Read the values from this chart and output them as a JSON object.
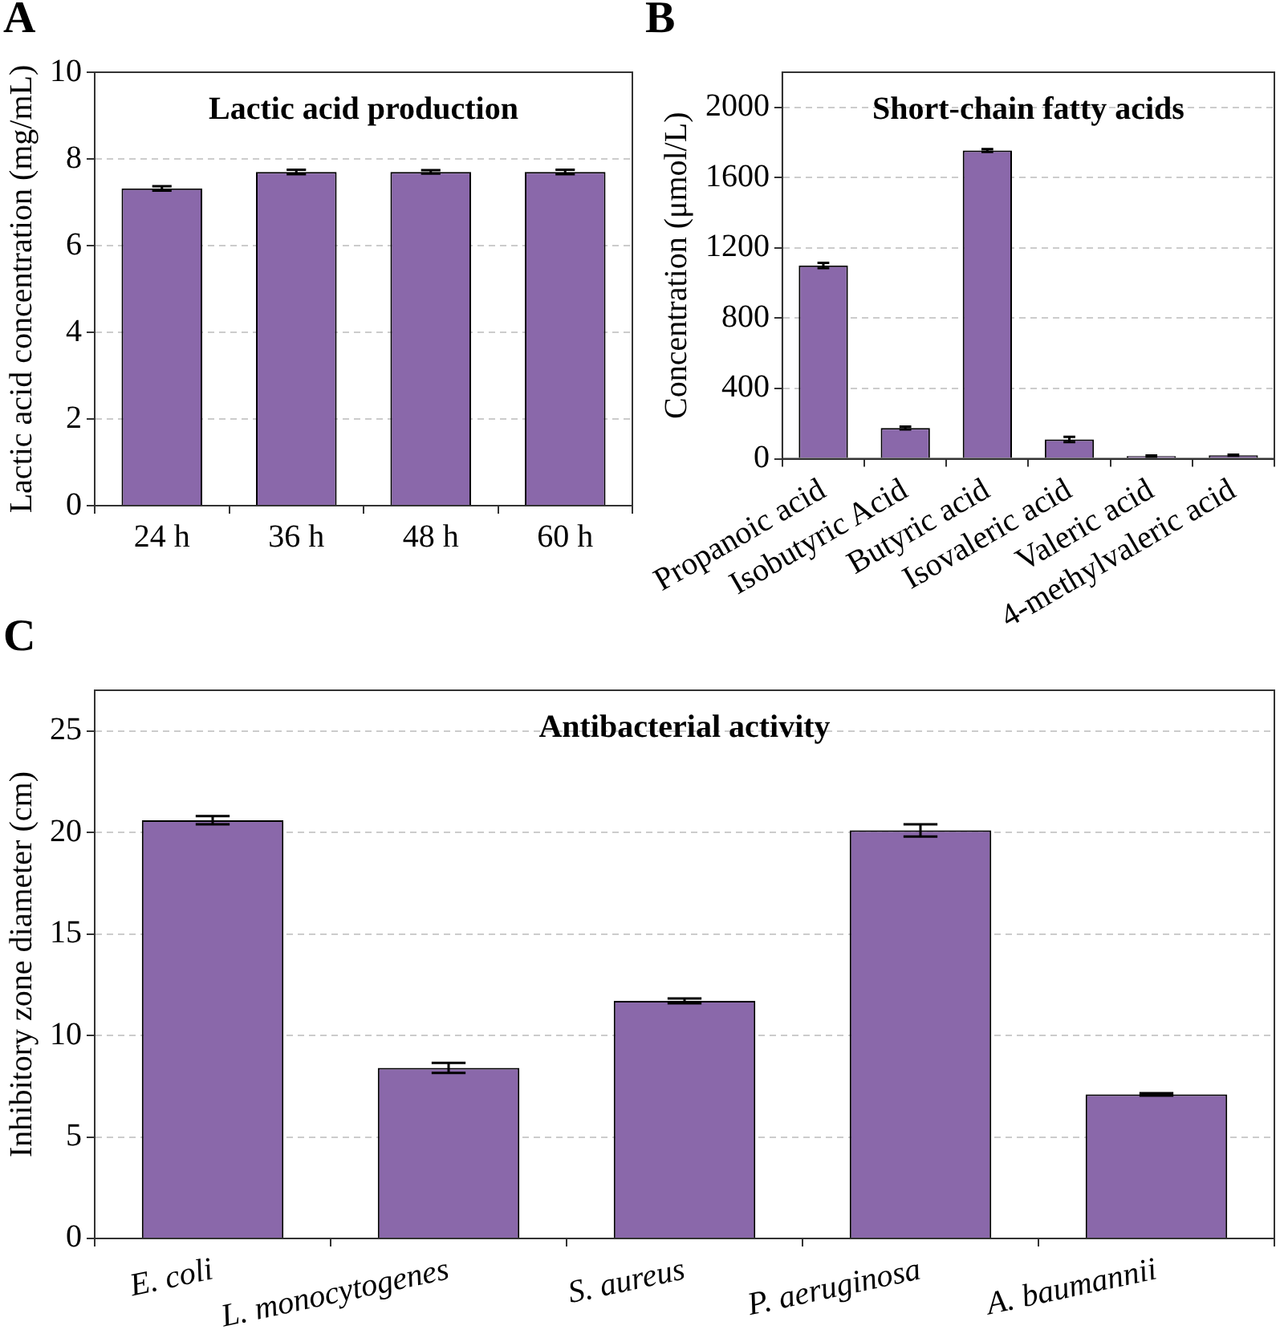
{
  "chart_data": [
    {
      "type": "bar",
      "title": "Lactic acid production",
      "ylabel": "Lactic acid concentration (mg/mL)",
      "annotations": [
        "A"
      ],
      "categories": [
        "24 h",
        "36 h",
        "48 h",
        "60 h"
      ],
      "values": [
        7.32,
        7.7,
        7.7,
        7.7
      ],
      "errors": [
        0.05,
        0.05,
        0.04,
        0.05
      ],
      "color": "#8a68aa",
      "ylim": [
        0,
        10
      ],
      "yticks": [
        0,
        2,
        4,
        6,
        8,
        10
      ],
      "grid": "y"
    },
    {
      "type": "bar",
      "title": "Short-chain fatty acids",
      "ylabel": "Concentration (μmol/L)",
      "annotations": [
        "B"
      ],
      "categories": [
        "Propanoic acid",
        "Isobutyric Acid",
        "Butyric acid",
        "Isovaleric acid",
        "Valeric acid",
        "4-methylvaleric acid"
      ],
      "values": [
        1100,
        175,
        1755,
        110,
        15,
        20
      ],
      "errors": [
        15,
        8,
        8,
        15,
        3,
        3
      ],
      "color": "#8a68aa",
      "ylim": [
        0,
        2200
      ],
      "yticks": [
        0,
        400,
        800,
        1200,
        1600,
        2000
      ],
      "grid": "y"
    },
    {
      "type": "bar",
      "title": "Antibacterial activity",
      "ylabel": "Inhibitory zone diameter (cm)",
      "annotations": [
        "C"
      ],
      "categories": [
        "E. coli",
        "L. monocytogenes",
        "S. aureus",
        "P. aeruginosa",
        "A. baumannii"
      ],
      "values": [
        20.6,
        8.4,
        11.7,
        20.1,
        7.1
      ],
      "errors": [
        0.2,
        0.25,
        0.12,
        0.3,
        0.06
      ],
      "color": "#8a68aa",
      "ylim": [
        0,
        27
      ],
      "yticks": [
        0,
        5,
        10,
        15,
        20,
        25
      ],
      "grid": "y"
    }
  ]
}
